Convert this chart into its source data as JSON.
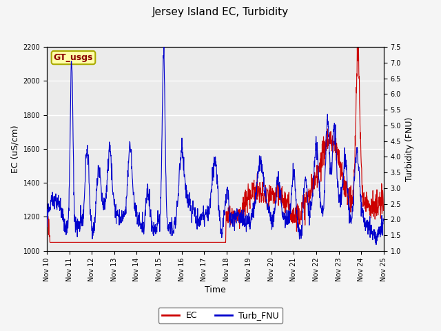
{
  "title": "Jersey Island EC, Turbidity",
  "xlabel": "Time",
  "ylabel_left": "EC (uS/cm)",
  "ylabel_right": "Turbidity (FNU)",
  "xlim_days": [
    10,
    25
  ],
  "ylim_left": [
    1000,
    2200
  ],
  "ylim_right": [
    1.0,
    7.5
  ],
  "yticks_left": [
    1000,
    1200,
    1400,
    1600,
    1800,
    2000,
    2200
  ],
  "yticks_right": [
    1.0,
    1.5,
    2.0,
    2.5,
    3.0,
    3.5,
    4.0,
    4.5,
    5.0,
    5.5,
    6.0,
    6.5,
    7.0,
    7.5
  ],
  "xtick_positions": [
    10,
    11,
    12,
    13,
    14,
    15,
    16,
    17,
    18,
    19,
    20,
    21,
    22,
    23,
    24,
    25
  ],
  "xtick_labels": [
    "Nov 10",
    "Nov 11",
    "Nov 12",
    "Nov 13",
    "Nov 14",
    "Nov 15",
    "Nov 16",
    "Nov 17",
    "Nov 18",
    "Nov 19",
    "Nov 20",
    "Nov 21",
    "Nov 22",
    "Nov 23",
    "Nov 24",
    "Nov 25"
  ],
  "ec_color": "#cc0000",
  "turb_color": "#0000cc",
  "legend_label_ec": "EC",
  "legend_label_turb": "Turb_FNU",
  "annotation_text": "GT_usgs",
  "annotation_color": "#8b0000",
  "annotation_bg": "#ffffaa",
  "annotation_border": "#aaaa00",
  "inner_bg_color": "#ebebeb",
  "fig_bg_color": "#f5f5f5",
  "title_fontsize": 11,
  "axis_label_fontsize": 9,
  "tick_fontsize": 7,
  "legend_fontsize": 9,
  "line_width": 0.8
}
